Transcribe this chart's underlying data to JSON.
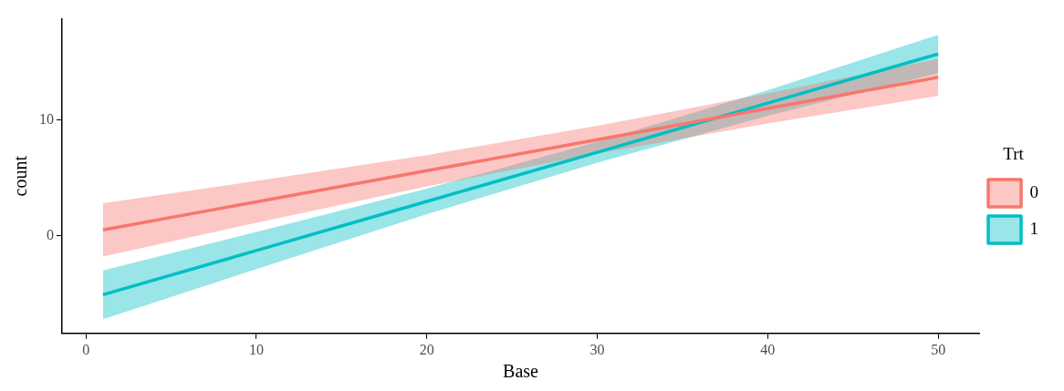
{
  "chart_data": {
    "type": "line",
    "xlabel": "Base",
    "ylabel": "count",
    "legend_title": "Trt",
    "legend": "right",
    "grid": false,
    "marker": "none",
    "line_style": "solid",
    "x": [
      1,
      10,
      20,
      30,
      40,
      50
    ],
    "xlim": [
      -1.4,
      52.4
    ],
    "xticks": [
      0,
      10,
      20,
      30,
      40,
      50
    ],
    "ylim": [
      -8.4,
      18.7
    ],
    "yticks": [
      0,
      10
    ],
    "series": [
      {
        "name": "0",
        "color": "#f8766d",
        "values": [
          0.52,
          2.93,
          5.61,
          8.29,
          10.97,
          13.66
        ],
        "lower": [
          -1.78,
          1.13,
          4.26,
          7.09,
          9.67,
          12.06
        ],
        "upper": [
          2.82,
          4.73,
          6.96,
          9.49,
          12.27,
          15.26
        ]
      },
      {
        "name": "1",
        "color": "#00bfc4",
        "values": [
          -5.07,
          -1.26,
          2.97,
          7.2,
          11.44,
          15.67
        ],
        "lower": [
          -7.17,
          -2.86,
          1.87,
          6.3,
          10.34,
          14.02
        ],
        "upper": [
          -2.97,
          0.34,
          4.07,
          8.1,
          12.54,
          17.32
        ]
      }
    ]
  }
}
